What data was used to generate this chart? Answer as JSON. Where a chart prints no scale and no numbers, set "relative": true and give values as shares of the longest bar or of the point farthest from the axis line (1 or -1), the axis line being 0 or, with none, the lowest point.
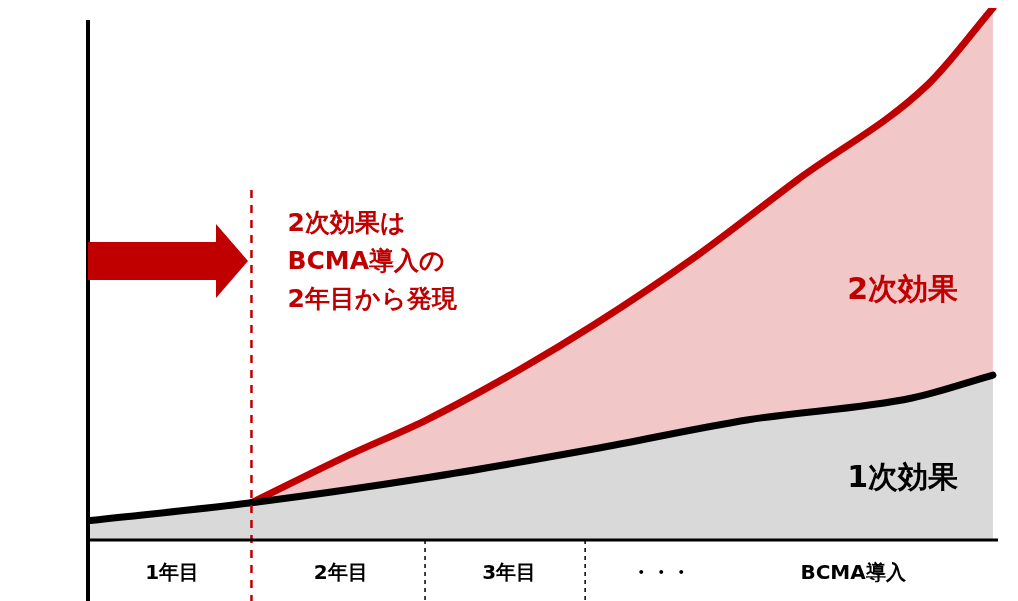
{
  "chart_data": {
    "type": "area",
    "relative": true,
    "xlim": [
      0,
      5.4
    ],
    "xticks": [
      {
        "value": 0.5,
        "label": "1年目"
      },
      {
        "value": 1.5,
        "label": "2年目"
      },
      {
        "value": 2.5,
        "label": "3年目"
      },
      {
        "value": 3.4,
        "label": "・・・"
      },
      {
        "value": 4.54,
        "label": "BCMA導入"
      }
    ],
    "series": [
      {
        "name": "1次効果",
        "color": "#000000",
        "x": [
          0,
          0.97,
          2.01,
          3.0,
          3.92,
          4.89,
          5.37
        ],
        "values": [
          0.036,
          0.07,
          0.117,
          0.171,
          0.226,
          0.267,
          0.31
        ]
      },
      {
        "name": "2次効果",
        "color": "#c00000",
        "x": [
          0.97,
          1.55,
          2.01,
          2.56,
          3.0,
          3.62,
          4.21,
          4.98,
          5.37
        ],
        "values": [
          0.07,
          0.16,
          0.226,
          0.32,
          0.404,
          0.536,
          0.677,
          0.855,
          1
        ]
      }
    ],
    "ref_lines": [
      {
        "axis": "x",
        "value": 0.97,
        "color": "#c00000",
        "line_style": "dashed"
      }
    ],
    "annotations": [
      "2次効果は\nBCMA導入の\n2年目から発現"
    ],
    "legend": false,
    "grid": false
  }
}
